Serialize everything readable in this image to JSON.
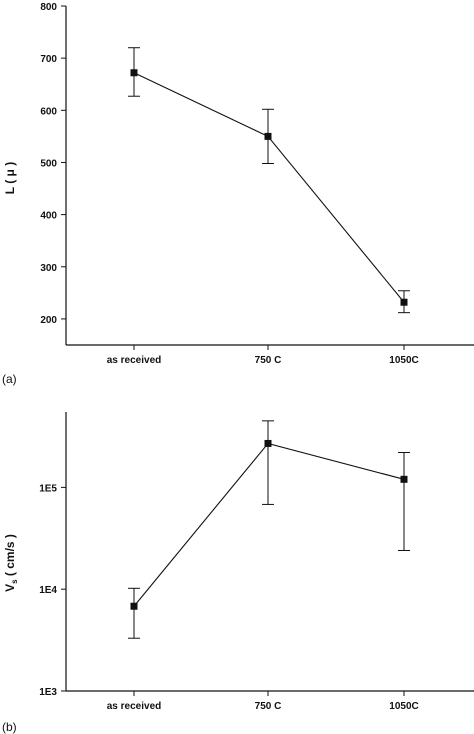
{
  "chart_data": [
    {
      "panel": "(a)",
      "type": "line",
      "categories": [
        "as received",
        "750 C",
        "1050C"
      ],
      "series": [
        {
          "values": [
            672,
            550,
            232
          ],
          "error_low": [
            627,
            498,
            212
          ],
          "error_high": [
            720,
            602,
            254
          ]
        }
      ],
      "ylabel": "L ( μ )",
      "ylim": [
        150,
        800
      ],
      "yticks": [
        200,
        300,
        400,
        500,
        600,
        700,
        800
      ],
      "ytick_labels": [
        "200",
        "300",
        "400",
        "500",
        "600",
        "700",
        "800"
      ],
      "yscale": "linear",
      "grid": false,
      "color": "#111111"
    },
    {
      "panel": "(b)",
      "type": "line",
      "categories": [
        "as received",
        "750 C",
        "1050C"
      ],
      "series": [
        {
          "values": [
            6800,
            270000,
            120000
          ],
          "error_low": [
            3300,
            68000,
            24000
          ],
          "error_high": [
            10200,
            450000,
            220000
          ]
        }
      ],
      "ylabel_main": "V",
      "ylabel_sub": "s",
      "ylabel_rest": " ( cm/s )",
      "ylim": [
        1000,
        550000
      ],
      "yticks": [
        1000,
        10000,
        100000
      ],
      "ytick_labels": [
        "1E3",
        "1E4",
        "1E5"
      ],
      "yscale": "log",
      "grid": false,
      "color": "#111111"
    }
  ]
}
